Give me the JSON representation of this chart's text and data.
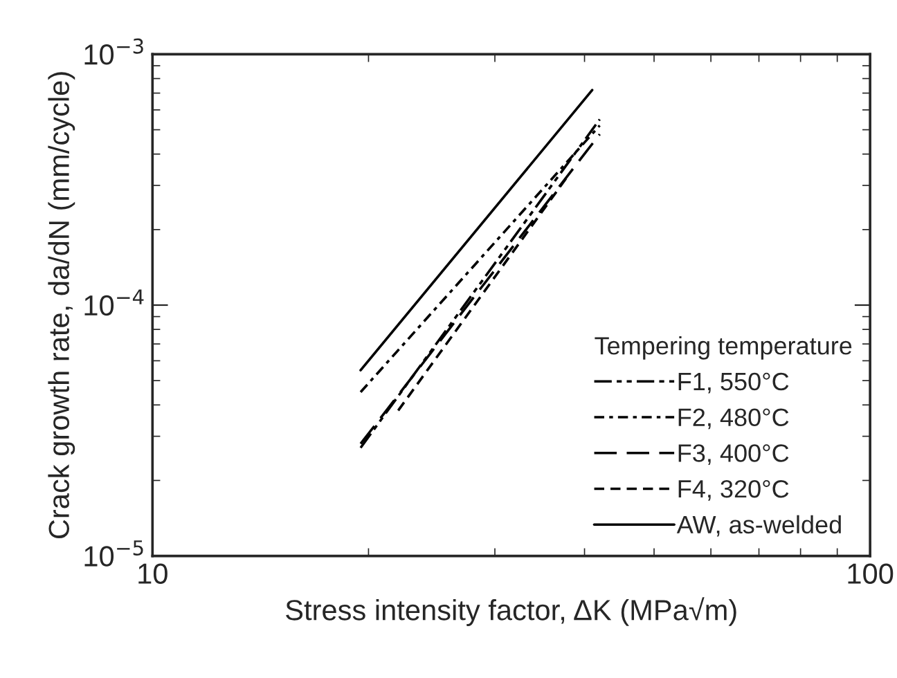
{
  "chart_data": {
    "type": "line",
    "xlabel": "Stress intensity factor, ΔK (MPa√m)",
    "ylabel": "Crack growth rate, da/dN (mm/cycle)",
    "legend_title": "Tempering temperature",
    "log": "xy",
    "xlim": [
      10,
      100
    ],
    "ylim": [
      1e-05,
      0.001
    ],
    "xticks": [
      10,
      100
    ],
    "yticks": [
      {
        "value": 1e-05,
        "label": "10$^{−5}$"
      },
      {
        "value": 0.0001,
        "label": "10$^{−4}$"
      },
      {
        "value": 0.001,
        "label": "10$^{−3}$"
      }
    ],
    "grid": false,
    "legend": "bottom right",
    "marker": "none",
    "series": [
      {
        "name": "F1, 550°C",
        "color": "#000000",
        "line_style": "dashdotdot",
        "x": [
          19.5,
          42
        ],
        "values": [
          2.7e-05,
          0.00055
        ]
      },
      {
        "name": "F2, 480°C",
        "color": "#000000",
        "line_style": "dashdot",
        "x": [
          19.5,
          42
        ],
        "values": [
          4.5e-05,
          0.00052
        ]
      },
      {
        "name": "F3, 400°C",
        "color": "#000000",
        "line_style": "longdash",
        "x": [
          19.5,
          42
        ],
        "values": [
          2.8e-05,
          0.00048
        ]
      },
      {
        "name": "F4, 320°C",
        "color": "#000000",
        "line_style": "dashed",
        "x": [
          22,
          38
        ],
        "values": [
          3.8e-05,
          0.00033
        ]
      },
      {
        "name": "AW, as-welded",
        "color": "#000000",
        "line_style": "solid",
        "x": [
          19.5,
          41
        ],
        "values": [
          5.5e-05,
          0.00072
        ]
      }
    ]
  }
}
